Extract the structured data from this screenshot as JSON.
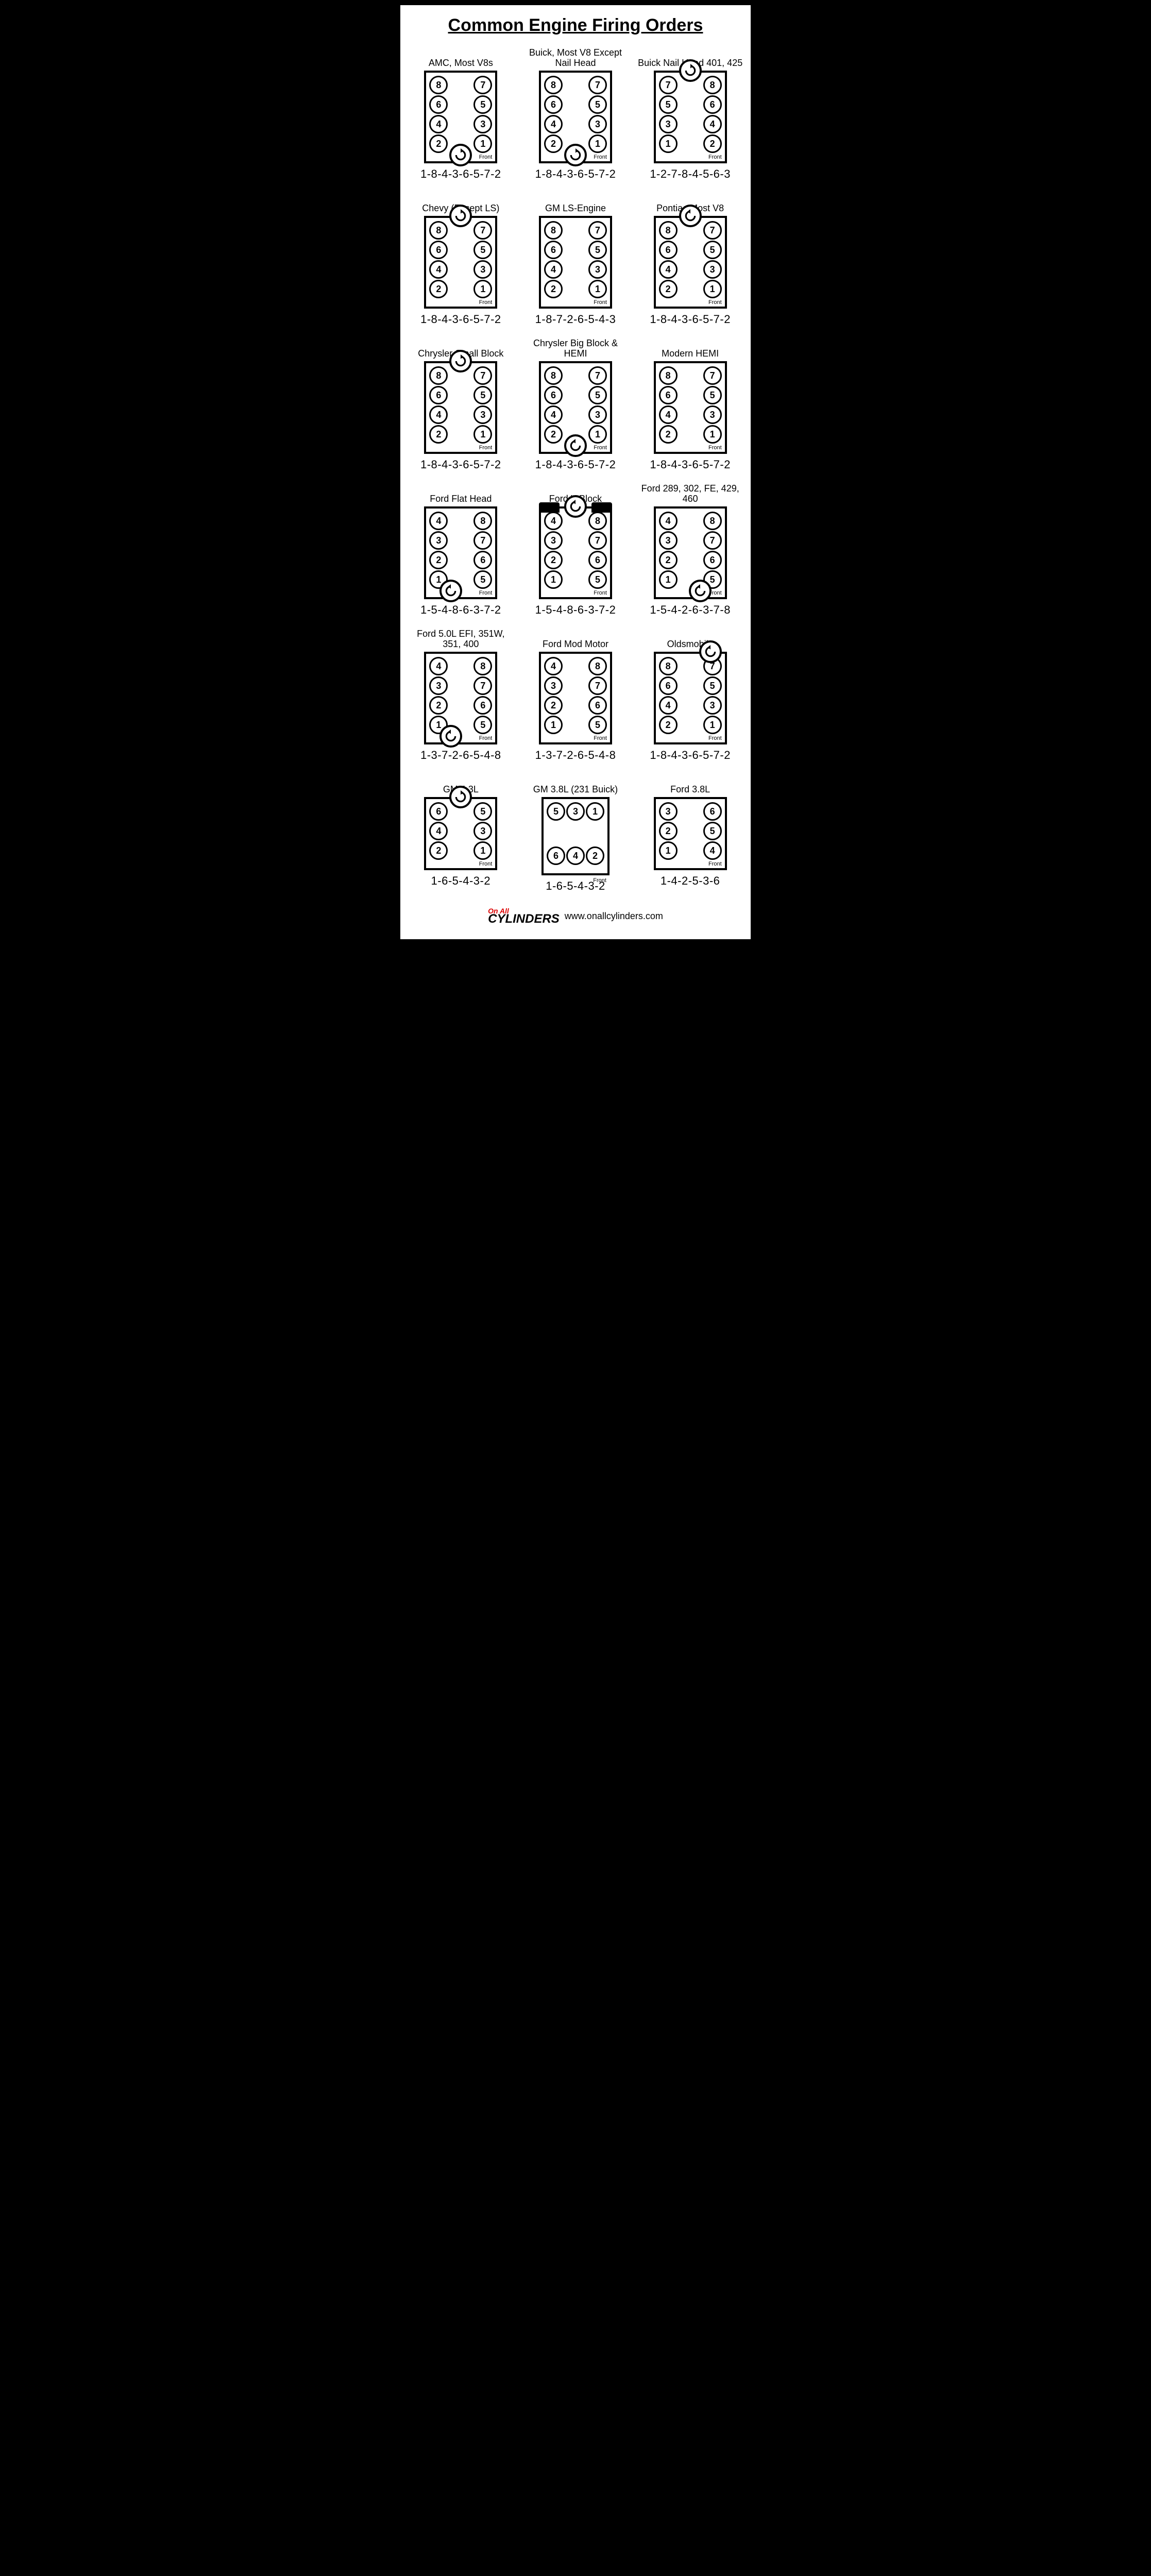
{
  "title": "Common Engine Firing Orders",
  "footer_url": "www.onallcylinders.com",
  "logo_top": "On All",
  "logo_main": "CYLINDERS",
  "front_label": "Front",
  "engines": [
    {
      "name": "AMC, Most V8s",
      "layout": "v8-std",
      "left_bank": [
        8,
        6,
        4,
        2
      ],
      "right_bank": [
        7,
        5,
        3,
        1
      ],
      "dist_pos": "bottom-center",
      "dist_dir": "cw",
      "order": "1-8-4-3-6-5-7-2"
    },
    {
      "name": "Buick, Most V8 Except Nail Head",
      "layout": "v8-std",
      "left_bank": [
        8,
        6,
        4,
        2
      ],
      "right_bank": [
        7,
        5,
        3,
        1
      ],
      "dist_pos": "bottom-center",
      "dist_dir": "cw",
      "order": "1-8-4-3-6-5-7-2"
    },
    {
      "name": "Buick Nail Head 401, 425",
      "layout": "v8-std",
      "left_bank": [
        7,
        5,
        3,
        1
      ],
      "right_bank": [
        8,
        6,
        4,
        2
      ],
      "dist_pos": "top-center",
      "dist_dir": "cw",
      "order": "1-2-7-8-4-5-6-3"
    },
    {
      "name": "Chevy (Except LS)",
      "layout": "v8-std",
      "left_bank": [
        8,
        6,
        4,
        2
      ],
      "right_bank": [
        7,
        5,
        3,
        1
      ],
      "dist_pos": "top-center",
      "dist_dir": "cw",
      "order": "1-8-4-3-6-5-7-2"
    },
    {
      "name": "GM LS-Engine",
      "layout": "v8-std",
      "left_bank": [
        8,
        6,
        4,
        2
      ],
      "right_bank": [
        7,
        5,
        3,
        1
      ],
      "dist_pos": "none",
      "dist_dir": "",
      "order": "1-8-7-2-6-5-4-3"
    },
    {
      "name": "Pontiac Most V8",
      "layout": "v8-std",
      "left_bank": [
        8,
        6,
        4,
        2
      ],
      "right_bank": [
        7,
        5,
        3,
        1
      ],
      "dist_pos": "top-center",
      "dist_dir": "ccw",
      "order": "1-8-4-3-6-5-7-2"
    },
    {
      "name": "Chrysler Small Block",
      "layout": "v8-std",
      "left_bank": [
        8,
        6,
        4,
        2
      ],
      "right_bank": [
        7,
        5,
        3,
        1
      ],
      "dist_pos": "top-center",
      "dist_dir": "cw",
      "order": "1-8-4-3-6-5-7-2"
    },
    {
      "name": "Chrysler Big Block & HEMI",
      "layout": "v8-std",
      "left_bank": [
        8,
        6,
        4,
        2
      ],
      "right_bank": [
        7,
        5,
        3,
        1
      ],
      "dist_pos": "bottom-center",
      "dist_dir": "ccw",
      "order": "1-8-4-3-6-5-7-2"
    },
    {
      "name": "Modern HEMI",
      "layout": "v8-std",
      "left_bank": [
        8,
        6,
        4,
        2
      ],
      "right_bank": [
        7,
        5,
        3,
        1
      ],
      "dist_pos": "none",
      "dist_dir": "",
      "order": "1-8-4-3-6-5-7-2"
    },
    {
      "name": "Ford Flat Head",
      "layout": "v8-std",
      "left_bank": [
        4,
        3,
        2,
        1
      ],
      "right_bank": [
        8,
        7,
        6,
        5
      ],
      "dist_pos": "bottom-left",
      "dist_dir": "ccw",
      "order": "1-5-4-8-6-3-7-2"
    },
    {
      "name": "Ford Y Block",
      "layout": "v8-yblock",
      "left_bank": [
        4,
        3,
        2,
        1
      ],
      "right_bank": [
        8,
        7,
        6,
        5
      ],
      "dist_pos": "top-center",
      "dist_dir": "ccw",
      "order": "1-5-4-8-6-3-7-2"
    },
    {
      "name": "Ford 289, 302, FE, 429, 460",
      "layout": "v8-std",
      "left_bank": [
        4,
        3,
        2,
        1
      ],
      "right_bank": [
        8,
        7,
        6,
        5
      ],
      "dist_pos": "bottom-right",
      "dist_dir": "ccw",
      "order": "1-5-4-2-6-3-7-8"
    },
    {
      "name": "Ford 5.0L EFI, 351W, 351, 400",
      "layout": "v8-std",
      "left_bank": [
        4,
        3,
        2,
        1
      ],
      "right_bank": [
        8,
        7,
        6,
        5
      ],
      "dist_pos": "bottom-left",
      "dist_dir": "ccw",
      "order": "1-3-7-2-6-5-4-8"
    },
    {
      "name": "Ford Mod Motor",
      "layout": "v8-std",
      "left_bank": [
        4,
        3,
        2,
        1
      ],
      "right_bank": [
        8,
        7,
        6,
        5
      ],
      "dist_pos": "none",
      "dist_dir": "",
      "order": "1-3-7-2-6-5-4-8"
    },
    {
      "name": "Oldsmobile",
      "layout": "v8-std",
      "left_bank": [
        8,
        6,
        4,
        2
      ],
      "right_bank": [
        7,
        5,
        3,
        1
      ],
      "dist_pos": "top-right",
      "dist_dir": "ccw",
      "order": "1-8-4-3-6-5-7-2"
    },
    {
      "name": "GM 4.3L",
      "layout": "v6-vert",
      "left_bank": [
        6,
        4,
        2
      ],
      "right_bank": [
        5,
        3,
        1
      ],
      "dist_pos": "top-center",
      "dist_dir": "cw",
      "order": "1-6-5-4-3-2"
    },
    {
      "name": "GM 3.8L (231 Buick)",
      "layout": "v6-horiz",
      "top_bank": [
        5,
        3,
        1
      ],
      "bottom_bank": [
        6,
        4,
        2
      ],
      "dist_pos": "none",
      "dist_dir": "",
      "order": "1-6-5-4-3-2"
    },
    {
      "name": "Ford 3.8L",
      "layout": "v6-vert",
      "left_bank": [
        3,
        2,
        1
      ],
      "right_bank": [
        6,
        5,
        4
      ],
      "dist_pos": "none",
      "dist_dir": "",
      "order": "1-4-2-5-3-6"
    }
  ],
  "colors": {
    "bg": "#ffffff",
    "fg": "#000000",
    "accent": "#d00000"
  }
}
